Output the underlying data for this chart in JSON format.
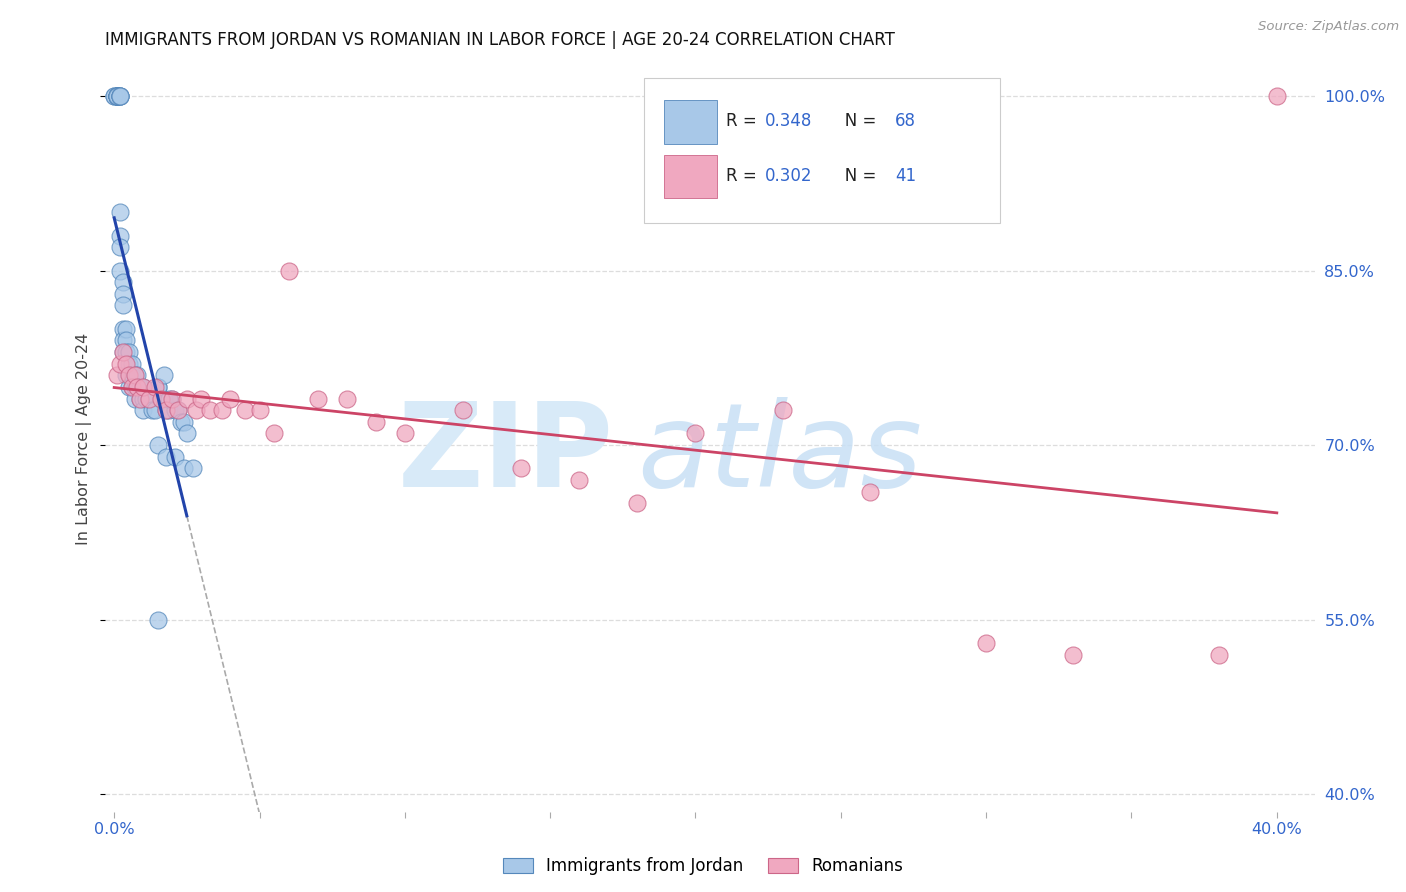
{
  "title": "IMMIGRANTS FROM JORDAN VS ROMANIAN IN LABOR FORCE | AGE 20-24 CORRELATION CHART",
  "source": "Source: ZipAtlas.com",
  "ylabel": "In Labor Force | Age 20-24",
  "xlim_min": -0.003,
  "xlim_max": 0.413,
  "ylim_min": 0.385,
  "ylim_max": 1.025,
  "jordan_color": "#a8c8e8",
  "jordan_edge": "#5588bb",
  "romanian_color": "#f0a8c0",
  "romanian_edge": "#cc6688",
  "trend_jordan_color": "#2244aa",
  "trend_romanian_color": "#cc4466",
  "grid_color": "#dddddd",
  "axis_label_color": "#3366cc",
  "title_color": "#111111",
  "source_color": "#999999",
  "yticks": [
    0.4,
    0.55,
    0.7,
    0.85,
    1.0
  ],
  "yticklabels": [
    "40.0%",
    "55.0%",
    "70.0%",
    "85.0%",
    "100.0%"
  ],
  "jordan_R": "0.348",
  "jordan_N": "68",
  "romanian_R": "0.302",
  "romanian_N": "41",
  "jordan_x": [
    0.0,
    0.0,
    0.001,
    0.001,
    0.001,
    0.001,
    0.001,
    0.001,
    0.001,
    0.002,
    0.002,
    0.002,
    0.002,
    0.002,
    0.002,
    0.002,
    0.002,
    0.003,
    0.003,
    0.003,
    0.003,
    0.003,
    0.003,
    0.004,
    0.004,
    0.004,
    0.004,
    0.005,
    0.005,
    0.005,
    0.005,
    0.006,
    0.006,
    0.006,
    0.007,
    0.007,
    0.007,
    0.008,
    0.008,
    0.009,
    0.009,
    0.01,
    0.01,
    0.01,
    0.011,
    0.012,
    0.013,
    0.014,
    0.015,
    0.016,
    0.017,
    0.018,
    0.019,
    0.02,
    0.021,
    0.022,
    0.023,
    0.024,
    0.025,
    0.015,
    0.017,
    0.019,
    0.015,
    0.018,
    0.021,
    0.024,
    0.027,
    0.015
  ],
  "jordan_y": [
    1.0,
    1.0,
    1.0,
    1.0,
    1.0,
    1.0,
    1.0,
    1.0,
    1.0,
    1.0,
    1.0,
    1.0,
    1.0,
    0.9,
    0.88,
    0.87,
    0.85,
    0.84,
    0.83,
    0.82,
    0.8,
    0.79,
    0.78,
    0.8,
    0.79,
    0.78,
    0.76,
    0.78,
    0.77,
    0.76,
    0.75,
    0.77,
    0.76,
    0.75,
    0.76,
    0.75,
    0.74,
    0.76,
    0.75,
    0.75,
    0.74,
    0.75,
    0.74,
    0.73,
    0.74,
    0.74,
    0.73,
    0.73,
    0.75,
    0.74,
    0.74,
    0.73,
    0.73,
    0.74,
    0.73,
    0.73,
    0.72,
    0.72,
    0.71,
    0.75,
    0.76,
    0.74,
    0.7,
    0.69,
    0.69,
    0.68,
    0.68,
    0.55
  ],
  "romanian_x": [
    0.001,
    0.002,
    0.003,
    0.004,
    0.005,
    0.006,
    0.007,
    0.008,
    0.009,
    0.01,
    0.012,
    0.014,
    0.016,
    0.018,
    0.02,
    0.022,
    0.025,
    0.028,
    0.03,
    0.033,
    0.037,
    0.04,
    0.045,
    0.05,
    0.055,
    0.06,
    0.07,
    0.08,
    0.09,
    0.1,
    0.12,
    0.14,
    0.16,
    0.18,
    0.2,
    0.23,
    0.26,
    0.3,
    0.33,
    0.38,
    0.4
  ],
  "romanian_y": [
    0.76,
    0.77,
    0.78,
    0.77,
    0.76,
    0.75,
    0.76,
    0.75,
    0.74,
    0.75,
    0.74,
    0.75,
    0.74,
    0.73,
    0.74,
    0.73,
    0.74,
    0.73,
    0.74,
    0.73,
    0.73,
    0.74,
    0.73,
    0.73,
    0.71,
    0.85,
    0.74,
    0.74,
    0.72,
    0.71,
    0.73,
    0.68,
    0.67,
    0.65,
    0.71,
    0.73,
    0.66,
    0.53,
    0.52,
    0.52,
    1.0
  ]
}
